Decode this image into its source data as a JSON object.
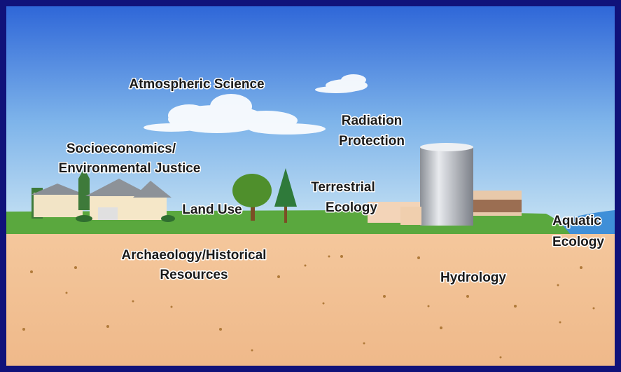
{
  "labels": [
    {
      "lines": [
        "Atmospheric Science"
      ]
    },
    {
      "lines": [
        "Radiation",
        "Protection"
      ]
    },
    {
      "lines": [
        "Socioeconomics/",
        "Environmental Justice"
      ]
    },
    {
      "lines": [
        "Land Use"
      ]
    },
    {
      "lines": [
        "Terrestrial",
        "Ecology"
      ]
    },
    {
      "lines": [
        "Aquatic",
        "Ecology"
      ]
    },
    {
      "lines": [
        "Archaeology/Historical",
        "Resources"
      ]
    },
    {
      "lines": [
        "Hydrology"
      ]
    }
  ]
}
